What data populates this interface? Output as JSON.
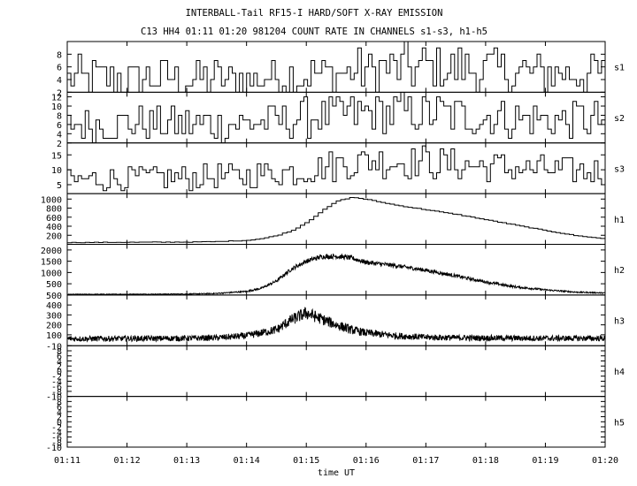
{
  "chart_data": {
    "type": "line",
    "title": "INTERBALL-Tail RF15-I HARD/SOFT X-RAY EMISSION",
    "subtitle": "C13 HH4 01:11 01:20 981204  COUNT RATE IN CHANNELS s1-s3, h1-h5",
    "xlabel": "time UT",
    "x_ticks": [
      "01:11",
      "01:12",
      "01:13",
      "01:14",
      "01:15",
      "01:16",
      "01:17",
      "01:18",
      "01:19",
      "01:20"
    ],
    "x_minutes": [
      0,
      1,
      2,
      3,
      4,
      5,
      6,
      7,
      8,
      9
    ],
    "grid": false,
    "panels": [
      {
        "name": "s1",
        "style": "step",
        "ylim": [
          2,
          10
        ],
        "yticks": [
          "2",
          "4",
          "6",
          "8"
        ],
        "ytick_values": [
          2,
          4,
          6,
          8
        ],
        "t": [
          0,
          1,
          2,
          3,
          4,
          5,
          6,
          7,
          8,
          9
        ],
        "y": [
          4.3,
          4.0,
          4.3,
          4.1,
          4.6,
          5.4,
          6.0,
          5.5,
          5.0,
          5.1
        ]
      },
      {
        "name": "s2",
        "style": "step",
        "ylim": [
          2,
          13
        ],
        "yticks": [
          "2",
          "4",
          "6",
          "8",
          "10",
          "12"
        ],
        "ytick_values": [
          2,
          4,
          6,
          8,
          10,
          12
        ],
        "t": [
          0,
          1,
          2,
          3,
          4,
          5,
          6,
          7,
          8,
          9
        ],
        "y": [
          6.0,
          6.2,
          6.0,
          6.3,
          7.6,
          8.4,
          8.6,
          7.6,
          7.0,
          7.0
        ]
      },
      {
        "name": "s3",
        "style": "step",
        "ylim": [
          2,
          19
        ],
        "yticks": [
          "5",
          "10",
          "15"
        ],
        "ytick_values": [
          5,
          10,
          15
        ],
        "t": [
          0,
          1,
          2,
          3,
          4,
          5,
          6,
          7,
          8,
          9
        ],
        "y": [
          6.5,
          7.0,
          7.5,
          8.0,
          10.0,
          13.0,
          12.5,
          11.0,
          10.0,
          9.0
        ]
      },
      {
        "name": "h1",
        "style": "step",
        "ylim": [
          0,
          1120
        ],
        "yticks": [
          "200",
          "400",
          "600",
          "800",
          "1000"
        ],
        "ytick_values": [
          200,
          400,
          600,
          800,
          1000
        ],
        "t": [
          0,
          1,
          2,
          2.5,
          3,
          3.25,
          3.5,
          3.75,
          4,
          4.25,
          4.5,
          4.75,
          5,
          5.5,
          6,
          6.5,
          7,
          7.5,
          8,
          8.5,
          9
        ],
        "y": [
          40,
          45,
          50,
          60,
          90,
          130,
          200,
          310,
          500,
          750,
          960,
          1040,
          990,
          860,
          760,
          660,
          540,
          420,
          300,
          190,
          120
        ]
      },
      {
        "name": "h2",
        "style": "noisy",
        "ylim": [
          0,
          2250
        ],
        "yticks": [
          "500",
          "1000",
          "1500",
          "2000"
        ],
        "ytick_values": [
          500,
          1000,
          1500,
          2000
        ],
        "t": [
          0,
          1,
          2,
          2.5,
          3,
          3.25,
          3.5,
          3.75,
          4,
          4.25,
          4.5,
          4.75,
          5,
          5.5,
          6,
          6.5,
          7,
          7.5,
          8,
          8.5,
          9
        ],
        "y": [
          30,
          35,
          45,
          70,
          160,
          300,
          620,
          1150,
          1500,
          1700,
          1720,
          1650,
          1450,
          1300,
          1100,
          850,
          580,
          360,
          230,
          130,
          90
        ]
      },
      {
        "name": "h3",
        "style": "noisy",
        "ylim": [
          -10,
          500
        ],
        "yticks": [
          "-10",
          "100",
          "200",
          "300",
          "400",
          "500"
        ],
        "ytick_values": [
          -10,
          100,
          200,
          300,
          400,
          500
        ],
        "t": [
          0,
          1,
          2,
          2.5,
          3,
          3.5,
          3.75,
          4,
          4.25,
          4.5,
          4.75,
          5,
          5.5,
          6,
          6.5,
          7,
          7.5,
          8,
          9
        ],
        "y": [
          60,
          62,
          65,
          70,
          90,
          150,
          250,
          320,
          260,
          200,
          150,
          120,
          90,
          75,
          70,
          68,
          66,
          65,
          64
        ]
      },
      {
        "name": "h4",
        "style": "empty",
        "ylim": [
          -10,
          10
        ],
        "yticks": [
          "-10",
          "-8",
          "-6",
          "-4",
          "-2",
          "0",
          "2",
          "4",
          "6",
          "8"
        ],
        "ytick_values": [
          -10,
          -8,
          -6,
          -4,
          -2,
          0,
          2,
          4,
          6,
          8
        ],
        "t": [],
        "y": []
      },
      {
        "name": "h5",
        "style": "empty",
        "ylim": [
          -10,
          10
        ],
        "yticks": [
          "-10",
          "-8",
          "-6",
          "-4",
          "-2",
          "0",
          "2",
          "4",
          "6",
          "8"
        ],
        "ytick_values": [
          -10,
          -8,
          -6,
          -4,
          -2,
          0,
          2,
          4,
          6,
          8
        ],
        "t": [],
        "y": []
      }
    ]
  }
}
